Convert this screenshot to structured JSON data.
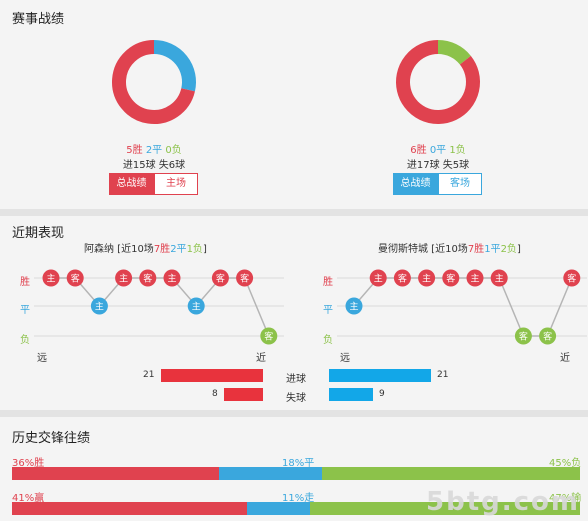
{
  "colors": {
    "win": "#e0424f",
    "draw": "#3aa7dd",
    "loss": "#8cc24a",
    "home_bar": "#e8333d",
    "away_bar": "#12a7e8"
  },
  "record": {
    "title": "赛事战绩",
    "left": {
      "wins": 5,
      "draws": 2,
      "losses": 0,
      "win_text": "5胜",
      "draw_text": "2平",
      "loss_text": "0负",
      "goals_text": "进15球 失6球",
      "tab_overall": "总战绩",
      "tab_venue": "主场"
    },
    "right": {
      "wins": 6,
      "draws": 0,
      "losses": 1,
      "win_text": "6胜",
      "draw_text": "0平",
      "loss_text": "1负",
      "goals_text": "进17球 失5球",
      "tab_overall": "总战绩",
      "tab_venue": "客场"
    }
  },
  "recent": {
    "title": "近期表现",
    "left": {
      "team": "阿森纳",
      "bracket_open": " [近10场",
      "w": "7胜",
      "d": "2平",
      "l": "1负",
      "bracket_close": "]",
      "results": [
        "W",
        "W",
        "D",
        "W",
        "W",
        "W",
        "D",
        "W",
        "W",
        "L"
      ],
      "venues": [
        "主",
        "客",
        "主",
        "主",
        "客",
        "主",
        "主",
        "客",
        "客",
        "客"
      ]
    },
    "right": {
      "team": "曼彻斯特城",
      "bracket_open": " [近10场",
      "w": "7胜",
      "d": "1平",
      "l": "2负",
      "bracket_close": "]",
      "results": [
        "D",
        "W",
        "W",
        "W",
        "W",
        "W",
        "W",
        "L",
        "L",
        "W"
      ],
      "venues": [
        "主",
        "主",
        "客",
        "主",
        "客",
        "主",
        "主",
        "客",
        "客",
        "客"
      ]
    },
    "row_win": "胜",
    "row_draw": "平",
    "row_loss": "负",
    "far": "远",
    "near": "近",
    "scored_label": "进球",
    "conceded_label": "失球",
    "left_scored": 21,
    "left_conceded": 8,
    "right_scored": 21,
    "right_conceded": 9
  },
  "history": {
    "title": "历史交锋往绩",
    "row1": {
      "a": "36%胜",
      "b": "18%平",
      "c": "45%负",
      "pa": 36,
      "pb": 18,
      "pc": 45
    },
    "row2": {
      "a": "41%赢",
      "b": "11%走",
      "c": "47%输",
      "pa": 41,
      "pb": 11,
      "pc": 47
    }
  },
  "watermark": "5btg.com"
}
